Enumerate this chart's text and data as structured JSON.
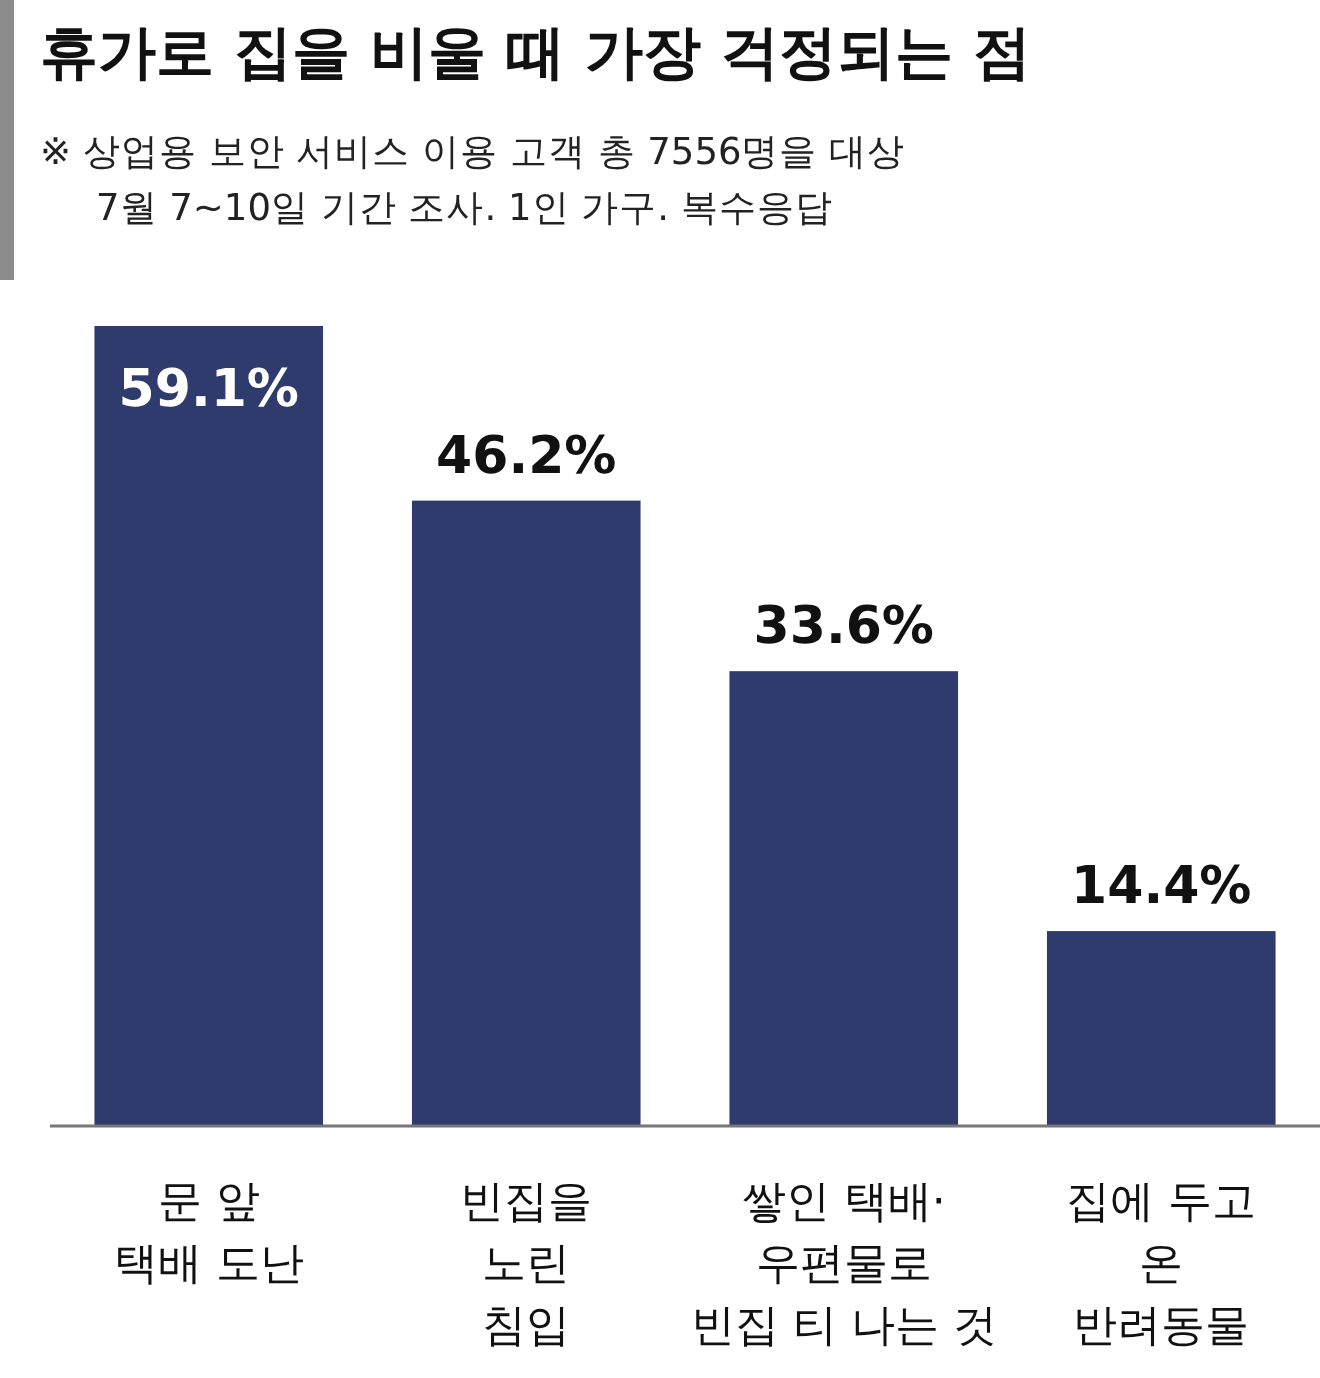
{
  "chart_data": {
    "type": "bar",
    "title": "휴가로 집을 비울 때 가장 걱정되는 점",
    "subtitle": "※ 상업용 보안 서비스 이용 고객 총 7556명을 대상\n7월 7~10일 기간 조사. 1인 가구. 복수응답",
    "categories": [
      "문 앞\n택배 도난",
      "빈집을\n노린\n침입",
      "쌓인 택배·\n우편물로\n빈집 티 나는 것",
      "집에 두고\n온\n반려동물"
    ],
    "values": [
      59.1,
      46.2,
      33.6,
      14.4
    ],
    "value_labels": [
      "59.1%",
      "46.2%",
      "33.6%",
      "14.4%"
    ],
    "color": "#2e3b6c"
  }
}
